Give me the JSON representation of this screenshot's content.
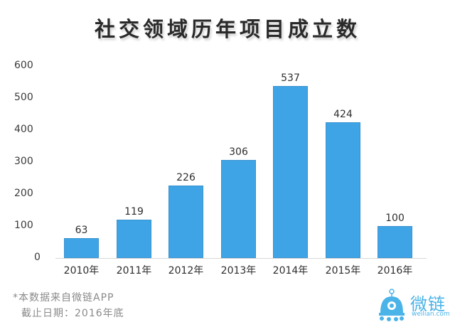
{
  "title": "社交领域历年项目成立数",
  "y_axis": {
    "ticks": [
      "600",
      "500",
      "400",
      "300",
      "200",
      "100",
      "0"
    ]
  },
  "bars": [
    {
      "category": "2010年",
      "value": 63,
      "label": "63"
    },
    {
      "category": "2011年",
      "value": 119,
      "label": "119"
    },
    {
      "category": "2012年",
      "value": 226,
      "label": "226"
    },
    {
      "category": "2013年",
      "value": 306,
      "label": "306"
    },
    {
      "category": "2014年",
      "value": 537,
      "label": "537"
    },
    {
      "category": "2015年",
      "value": 424,
      "label": "424"
    },
    {
      "category": "2016年",
      "value": 100,
      "label": "100"
    }
  ],
  "footnote": {
    "source": "*本数据来自微链APP",
    "date": "截止日期：2016年底"
  },
  "logo": {
    "name": "微链",
    "url_text": "weilian.com"
  },
  "colors": {
    "bar": "#3fa4e6",
    "logo": "#4ab3e8"
  },
  "chart_data": {
    "type": "bar",
    "title": "社交领域历年项目成立数",
    "categories": [
      "2010年",
      "2011年",
      "2012年",
      "2013年",
      "2014年",
      "2015年",
      "2016年"
    ],
    "values": [
      63,
      119,
      226,
      306,
      537,
      424,
      100
    ],
    "xlabel": "",
    "ylabel": "",
    "ylim": [
      0,
      600
    ],
    "yticks": [
      0,
      100,
      200,
      300,
      400,
      500,
      600
    ],
    "grid": false,
    "legend": null,
    "data_labels": true,
    "annotations": [
      "*本数据来自微链APP",
      "截止日期：2016年底"
    ]
  }
}
